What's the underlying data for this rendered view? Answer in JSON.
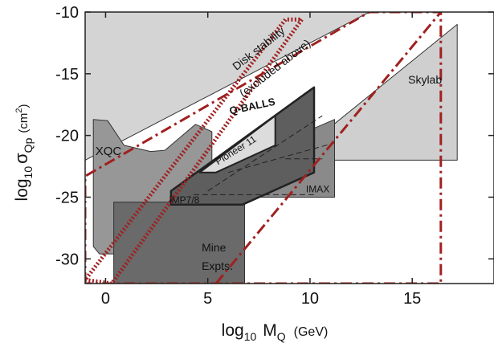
{
  "chart_data": {
    "type": "exclusion-plot",
    "xlabel": {
      "base": "log",
      "base_sub": "10",
      "sym": "M",
      "sym_sub": "Q",
      "unit": "(GeV)"
    },
    "ylabel": {
      "base": "log",
      "base_sub": "10",
      "sym": "σ",
      "sym_sub": "Qp",
      "unit_pre": "(cm",
      "unit_sup": "2",
      "unit_post": ")"
    },
    "xlim": [
      -1,
      19
    ],
    "ylim": [
      -32,
      -10
    ],
    "xticks": [
      0,
      5,
      10,
      15
    ],
    "yticks": [
      -10,
      -15,
      -20,
      -25,
      -30
    ],
    "xtick_labels": [
      "0",
      "5",
      "10",
      "15"
    ],
    "ytick_labels": [
      "-10",
      "-15",
      "-20",
      "-25",
      "-30"
    ],
    "colors": {
      "disk": "#d4d4d4",
      "skylab": "#cfcfcf",
      "xqc": "#979797",
      "mine": "#6a6a6a",
      "imax": "#8a8a8a",
      "qballs": "#5e5e5e",
      "pioneer": "#dcdcdc",
      "band": "#a02020"
    },
    "regions": [
      {
        "id": "disk",
        "label_lines": [
          "Disk stability",
          "(excluded above)"
        ],
        "points": [
          [
            -1,
            -10
          ],
          [
            12.9,
            -10
          ],
          [
            -1,
            -22
          ]
        ]
      },
      {
        "id": "skylab",
        "label_lines": [
          "Skylab"
        ],
        "points": [
          [
            9,
            -22
          ],
          [
            17.2,
            -11
          ],
          [
            17.2,
            -22
          ]
        ]
      },
      {
        "id": "xqc",
        "label_lines": [
          "XQC"
        ],
        "points": [
          [
            -0.6,
            -18.7
          ],
          [
            0.1,
            -18.8
          ],
          [
            0.9,
            -20.8
          ],
          [
            2.2,
            -21.3
          ],
          [
            2.9,
            -21.2
          ],
          [
            4.4,
            -19.1
          ],
          [
            5.2,
            -19.7
          ],
          [
            5.2,
            -27.5
          ],
          [
            3.1,
            -31.8
          ],
          [
            1.4,
            -29.6
          ],
          [
            -0.3,
            -29.6
          ],
          [
            -0.6,
            -29
          ]
        ]
      },
      {
        "id": "mine",
        "label_lines": [
          "Mine",
          "Expts."
        ],
        "points": [
          [
            0.4,
            -32
          ],
          [
            0.4,
            -25.4
          ],
          [
            6.8,
            -25.4
          ],
          [
            6.8,
            -32
          ]
        ]
      },
      {
        "id": "imax",
        "label_lines": [
          "IMAX"
        ],
        "points": [
          [
            7,
            -25
          ],
          [
            7,
            -21.7
          ],
          [
            11.2,
            -18.7
          ],
          [
            11.2,
            -25
          ]
        ]
      },
      {
        "id": "qballs",
        "label_lines": [
          "Q-BALLS"
        ],
        "points": [
          [
            3.2,
            -25.6
          ],
          [
            3.2,
            -24.5
          ],
          [
            10.2,
            -16.1
          ],
          [
            10.2,
            -23
          ],
          [
            6.7,
            -25.6
          ]
        ]
      },
      {
        "id": "pioneer",
        "label_lines": [
          "Pioneer 11"
        ],
        "points": [
          [
            4.6,
            -23
          ],
          [
            8.3,
            -18.4
          ],
          [
            8.3,
            -20.8
          ],
          [
            5.4,
            -23
          ]
        ]
      }
    ],
    "labels": {
      "imp": "IMP7/8"
    },
    "dashed_lines": [
      [
        [
          4.3,
          -24.8
        ],
        [
          10.3,
          -24.8
        ]
      ],
      [
        [
          5,
          -24.5
        ],
        [
          10.6,
          -18.4
        ]
      ],
      [
        [
          6,
          -23
        ],
        [
          11.2,
          -20.6
        ]
      ],
      [
        [
          8.8,
          -21.9
        ],
        [
          10.6,
          -21.9
        ]
      ]
    ],
    "red_dashdot": [
      [
        -1,
        -32
      ],
      [
        -1,
        -23.3
      ],
      [
        12.9,
        -10
      ],
      [
        16.4,
        -10
      ],
      [
        16.4,
        -32
      ],
      [
        -1,
        -32
      ]
    ],
    "red_dashdot_cut": [
      [
        5.4,
        -32
      ],
      [
        16.4,
        -32
      ]
    ],
    "red_dotted": [
      [
        -1,
        -31.7
      ],
      [
        0.3,
        -32
      ],
      [
        9.6,
        -10.6
      ],
      [
        8.8,
        -10.6
      ],
      [
        -1,
        -31.7
      ]
    ]
  }
}
